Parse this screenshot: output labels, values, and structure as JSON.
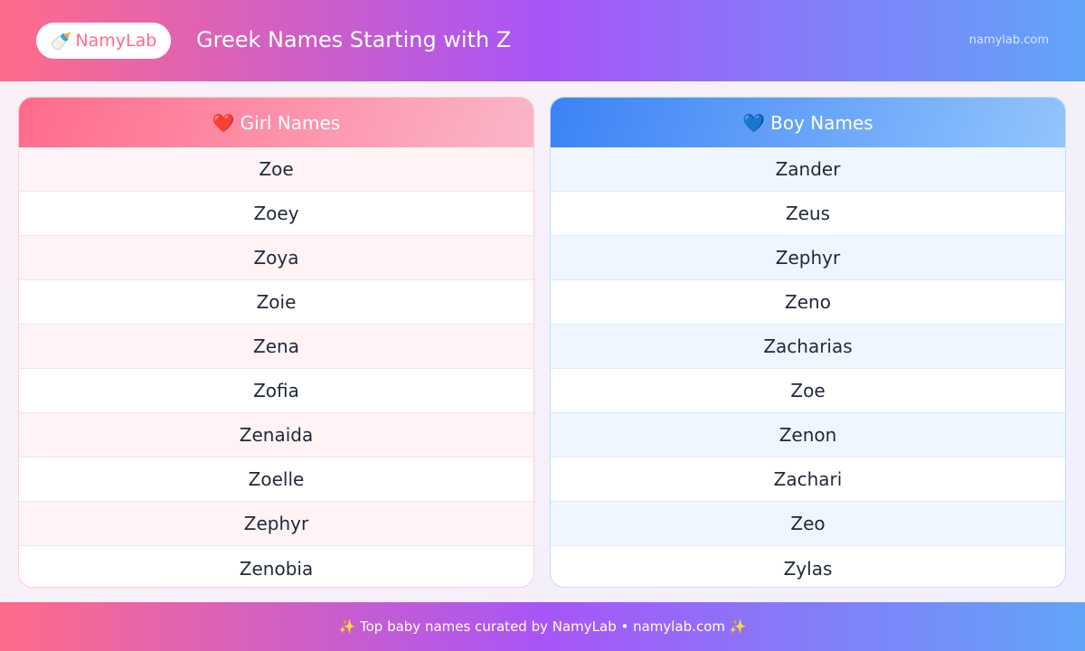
{
  "header": {
    "logo_icon": "baby-bottle-icon",
    "logo_label": "NamyLab",
    "title": "Greek Names Starting with Z",
    "site": "namylab.com"
  },
  "girls": {
    "icon": "❤️",
    "title": "Girl Names",
    "names": [
      "Zoe",
      "Zoey",
      "Zoya",
      "Zoie",
      "Zena",
      "Zofia",
      "Zenaida",
      "Zoelle",
      "Zephyr",
      "Zenobia"
    ]
  },
  "boys": {
    "icon": "💙",
    "title": "Boy Names",
    "names": [
      "Zander",
      "Zeus",
      "Zephyr",
      "Zeno",
      "Zacharias",
      "Zoe",
      "Zenon",
      "Zachari",
      "Zeo",
      "Zylas"
    ]
  },
  "footer": {
    "text": "✨ Top baby names curated by NamyLab • namylab.com ✨"
  },
  "colors": {
    "pink": "#ff6b8a",
    "purple": "#a855f7",
    "blue": "#60a5fa"
  }
}
